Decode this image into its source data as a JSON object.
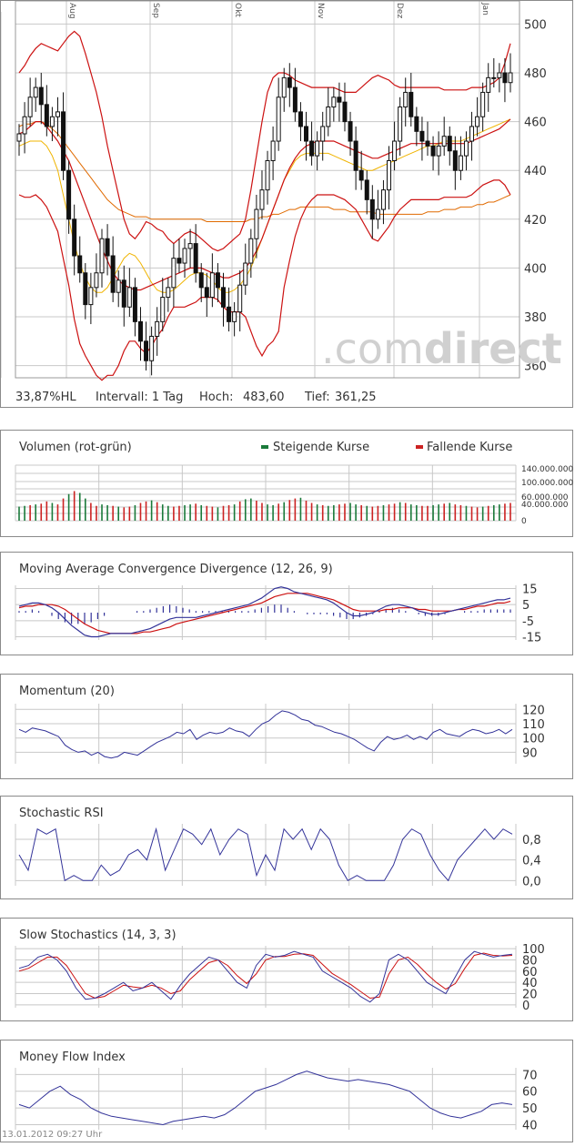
{
  "colors": {
    "grid": "#c8c8c8",
    "border": "#8a8a8a",
    "band": "#cc1111",
    "ma_fast": "#f0b400",
    "ma_slow": "#e06a00",
    "candle": "#111111",
    "rise": "#1a7a3a",
    "fall": "#cc2222",
    "ind": "#333399",
    "sig": "#cc1111"
  },
  "chart_data": [
    {
      "type": "candlestick",
      "months": [
        "Aug",
        "Sep",
        "Okt",
        "Nov",
        "Dez",
        "Jan"
      ],
      "y_ticks": [
        "500",
        "480",
        "460",
        "440",
        "420",
        "400",
        "380",
        "360"
      ],
      "ylim": [
        355,
        505
      ],
      "watermark": {
        "prefix": ".com",
        "suffix": "direct"
      },
      "stats": {
        "hl": "33,87%HL",
        "interval": "Intervall: 1 Tag",
        "high_label": "Hoch:",
        "high": "483,60",
        "low_label": "Tief:",
        "low": "361,25"
      },
      "close": [
        455,
        462,
        470,
        474,
        467,
        458,
        462,
        464,
        440,
        420,
        405,
        398,
        385,
        392,
        398,
        412,
        405,
        390,
        395,
        384,
        392,
        378,
        370,
        362,
        372,
        378,
        388,
        392,
        404,
        402,
        408,
        410,
        398,
        392,
        388,
        398,
        392,
        384,
        378,
        382,
        393,
        402,
        412,
        424,
        432,
        444,
        452,
        470,
        478,
        474,
        464,
        458,
        452,
        446,
        452,
        458,
        466,
        470,
        468,
        460,
        452,
        440,
        436,
        428,
        420,
        424,
        432,
        444,
        452,
        466,
        472,
        462,
        456,
        452,
        450,
        446,
        450,
        454,
        448,
        440,
        446,
        452,
        458,
        462,
        472,
        478,
        478,
        480,
        476,
        480
      ],
      "upper": [
        480,
        483,
        487,
        490,
        492,
        491,
        490,
        489,
        492,
        495,
        497,
        495,
        488,
        480,
        472,
        462,
        450,
        440,
        430,
        420,
        414,
        412,
        415,
        419,
        418,
        416,
        415,
        412,
        410,
        412,
        414,
        415,
        414,
        412,
        410,
        408,
        407,
        408,
        410,
        412,
        414,
        420,
        432,
        446,
        460,
        472,
        478,
        480,
        480,
        479,
        477,
        476,
        475,
        474,
        474,
        474,
        474,
        474,
        473,
        472,
        472,
        472,
        474,
        476,
        478,
        479,
        478,
        477,
        475,
        474,
        474,
        474,
        474,
        474,
        474,
        474,
        474,
        473,
        473,
        473,
        473,
        473,
        474,
        474,
        474,
        475,
        476,
        478,
        484,
        492
      ],
      "middle": [
        455,
        456,
        458,
        460,
        460,
        458,
        455,
        452,
        448,
        444,
        438,
        432,
        426,
        420,
        414,
        408,
        403,
        398,
        395,
        393,
        392,
        391,
        391,
        392,
        393,
        394,
        395,
        396,
        397,
        398,
        399,
        400,
        400,
        400,
        399,
        398,
        397,
        396,
        396,
        397,
        398,
        400,
        403,
        407,
        412,
        418,
        424,
        430,
        436,
        441,
        445,
        448,
        450,
        451,
        452,
        452,
        452,
        452,
        451,
        450,
        449,
        448,
        447,
        446,
        445,
        445,
        446,
        447,
        448,
        449,
        450,
        451,
        451,
        451,
        451,
        451,
        451,
        451,
        451,
        451,
        451,
        451,
        452,
        453,
        454,
        455,
        456,
        457,
        459,
        461
      ],
      "lower": [
        430,
        429,
        429,
        430,
        428,
        425,
        420,
        415,
        404,
        393,
        379,
        369,
        364,
        360,
        356,
        354,
        356,
        356,
        360,
        366,
        370,
        370,
        367,
        365,
        368,
        372,
        375,
        380,
        384,
        384,
        384,
        385,
        386,
        388,
        388,
        388,
        387,
        384,
        382,
        382,
        382,
        380,
        374,
        368,
        364,
        368,
        370,
        374,
        392,
        403,
        413,
        420,
        425,
        428,
        430,
        430,
        430,
        430,
        429,
        428,
        426,
        424,
        420,
        416,
        412,
        411,
        414,
        417,
        421,
        424,
        426,
        428,
        428,
        428,
        428,
        428,
        428,
        429,
        429,
        429,
        429,
        429,
        430,
        432,
        434,
        435,
        436,
        436,
        434,
        430
      ],
      "ma_fast": [
        450,
        451,
        452,
        452,
        452,
        450,
        446,
        440,
        430,
        420,
        410,
        402,
        396,
        392,
        390,
        390,
        392,
        396,
        400,
        404,
        406,
        405,
        402,
        398,
        394,
        391,
        390,
        390,
        391,
        393,
        395,
        397,
        398,
        398,
        397,
        395,
        392,
        390,
        390,
        391,
        393,
        396,
        400,
        406,
        412,
        418,
        424,
        430,
        436,
        440,
        444,
        446,
        447,
        447,
        447,
        447,
        447,
        446,
        445,
        444,
        443,
        442,
        441,
        440,
        440,
        441,
        442,
        443,
        444,
        445,
        446,
        447,
        448,
        449,
        450,
        450,
        451,
        452,
        452,
        452,
        452,
        453,
        454,
        455,
        456,
        457,
        458,
        459,
        460,
        461
      ],
      "ma_slow": [
        458,
        459,
        459,
        460,
        460,
        459,
        457,
        455,
        452,
        449,
        446,
        443,
        440,
        437,
        434,
        431,
        428,
        426,
        424,
        423,
        422,
        421,
        421,
        421,
        420,
        420,
        420,
        420,
        420,
        420,
        420,
        420,
        420,
        420,
        419,
        419,
        419,
        419,
        419,
        419,
        419,
        419,
        420,
        420,
        421,
        421,
        422,
        422,
        423,
        424,
        424,
        425,
        425,
        425,
        425,
        425,
        425,
        424,
        424,
        424,
        423,
        423,
        423,
        423,
        423,
        422,
        422,
        422,
        422,
        422,
        422,
        422,
        422,
        422,
        423,
        423,
        423,
        424,
        424,
        424,
        425,
        425,
        425,
        426,
        426,
        427,
        427,
        428,
        429,
        430
      ]
    },
    {
      "type": "bar",
      "title": "Volumen (rot-grün)",
      "legend": [
        {
          "name": "Steigende Kurse"
        },
        {
          "name": "Fallende Kurse"
        }
      ],
      "y_ticks": [
        "140.000.000",
        "100.000.000",
        "60.000.000",
        "40.000.000",
        "0"
      ],
      "ylim": [
        0,
        150000000
      ],
      "values": [
        38,
        40,
        42,
        44,
        46,
        52,
        48,
        44,
        60,
        72,
        80,
        75,
        60,
        48,
        40,
        44,
        42,
        40,
        38,
        36,
        38,
        42,
        48,
        52,
        55,
        50,
        44,
        40,
        38,
        40,
        42,
        44,
        46,
        42,
        40,
        38,
        36,
        40,
        42,
        44,
        52,
        58,
        60,
        54,
        48,
        44,
        42,
        46,
        50,
        56,
        60,
        62,
        54,
        48,
        44,
        42,
        40,
        42,
        44,
        46,
        48,
        44,
        42,
        40,
        38,
        40,
        42,
        44,
        46,
        50,
        48,
        44,
        42,
        40,
        40,
        42,
        44,
        46,
        48,
        44,
        42,
        40,
        38,
        36,
        38,
        40,
        42,
        44,
        46,
        48
      ]
    },
    {
      "type": "line",
      "title": "Moving Average Convergence Divergence (12, 26, 9)",
      "y_ticks": [
        "15",
        "5",
        "-5",
        "-15"
      ],
      "ylim": [
        -17,
        17
      ],
      "series": [
        {
          "values": [
            4,
            5,
            6,
            6,
            5,
            3,
            0,
            -4,
            -8,
            -11,
            -14,
            -15,
            -15,
            -14,
            -13,
            -13,
            -13,
            -13,
            -12,
            -11,
            -10,
            -8,
            -6,
            -4,
            -3,
            -3,
            -3,
            -3,
            -2,
            -1,
            0,
            1,
            2,
            3,
            4,
            5,
            7,
            9,
            12,
            15,
            16,
            15,
            13,
            12,
            11,
            10,
            9,
            8,
            6,
            3,
            0,
            -2,
            -2,
            -1,
            0,
            2,
            4,
            5,
            5,
            4,
            3,
            1,
            0,
            -1,
            -1,
            0,
            1,
            2,
            3,
            4,
            5,
            6,
            7,
            8,
            8,
            9
          ]
        },
        {
          "values": [
            3,
            4,
            4,
            5,
            5,
            5,
            4,
            2,
            -1,
            -4,
            -7,
            -9,
            -11,
            -12,
            -13,
            -13,
            -13,
            -13,
            -13,
            -12,
            -12,
            -11,
            -10,
            -9,
            -7,
            -6,
            -5,
            -4,
            -3,
            -2,
            -1,
            0,
            1,
            2,
            3,
            4,
            5,
            6,
            8,
            10,
            11,
            12,
            12,
            12,
            12,
            11,
            10,
            9,
            8,
            6,
            4,
            2,
            1,
            1,
            1,
            1,
            2,
            2,
            3,
            3,
            3,
            2,
            2,
            1,
            1,
            1,
            1,
            2,
            2,
            3,
            4,
            4,
            5,
            6,
            6,
            7
          ]
        },
        {
          "values": [
            1,
            1,
            2,
            1,
            0,
            -2,
            -4,
            -6,
            -7,
            -7,
            -7,
            -6,
            -4,
            -2,
            0,
            0,
            0,
            0,
            1,
            1,
            2,
            3,
            4,
            5,
            4,
            3,
            2,
            1,
            1,
            1,
            1,
            1,
            1,
            1,
            1,
            1,
            2,
            3,
            4,
            5,
            5,
            3,
            1,
            0,
            -1,
            -1,
            -1,
            -1,
            -2,
            -3,
            -4,
            -4,
            -3,
            -2,
            -1,
            1,
            2,
            3,
            2,
            1,
            0,
            -1,
            -2,
            -2,
            -2,
            -1,
            0,
            0,
            1,
            1,
            1,
            2,
            2,
            2,
            2,
            2
          ]
        }
      ]
    },
    {
      "type": "line",
      "title": "Momentum (20)",
      "y_ticks": [
        "120",
        "110",
        "100",
        "90"
      ],
      "ylim": [
        82,
        124
      ],
      "series": [
        {
          "values": [
            106,
            104,
            107,
            106,
            105,
            103,
            101,
            95,
            92,
            90,
            91,
            88,
            90,
            87,
            86,
            87,
            90,
            89,
            88,
            91,
            94,
            97,
            99,
            101,
            104,
            103,
            106,
            99,
            102,
            104,
            103,
            104,
            107,
            105,
            104,
            101,
            106,
            110,
            112,
            116,
            119,
            118,
            116,
            113,
            112,
            109,
            108,
            106,
            104,
            103,
            101,
            99,
            96,
            93,
            91,
            97,
            101,
            99,
            100,
            102,
            99,
            101,
            99,
            104,
            106,
            103,
            102,
            101,
            104,
            106,
            105,
            103,
            104,
            106,
            103,
            106
          ]
        }
      ]
    },
    {
      "type": "line",
      "title": "Stochastic RSI",
      "y_ticks": [
        "0,8",
        "0,4",
        "0,0"
      ],
      "ylim": [
        -0.1,
        1.1
      ],
      "series": [
        {
          "values": [
            0.5,
            0.2,
            1.0,
            0.9,
            1.0,
            0.0,
            0.1,
            0.0,
            0.0,
            0.3,
            0.1,
            0.2,
            0.5,
            0.6,
            0.4,
            1.0,
            0.2,
            0.6,
            1.0,
            0.9,
            0.7,
            1.0,
            0.5,
            0.8,
            1.0,
            0.9,
            0.1,
            0.5,
            0.2,
            1.0,
            0.8,
            1.0,
            0.6,
            1.0,
            0.8,
            0.3,
            0.0,
            0.1,
            0.0,
            0.0,
            0.0,
            0.3,
            0.8,
            1.0,
            0.9,
            0.5,
            0.2,
            0.0,
            0.4,
            0.6,
            0.8,
            1.0,
            0.8,
            1.0,
            0.9
          ]
        }
      ]
    },
    {
      "type": "line",
      "title": "Slow Stochastics (14, 3, 3)",
      "y_ticks": [
        "100",
        "80",
        "60",
        "40",
        "20",
        "0"
      ],
      "ylim": [
        -5,
        105
      ],
      "series": [
        {
          "values": [
            65,
            70,
            85,
            90,
            80,
            60,
            30,
            10,
            12,
            20,
            30,
            40,
            25,
            30,
            40,
            25,
            10,
            35,
            55,
            70,
            85,
            80,
            60,
            40,
            30,
            70,
            90,
            85,
            88,
            95,
            90,
            85,
            60,
            50,
            40,
            30,
            15,
            5,
            20,
            80,
            90,
            80,
            60,
            40,
            30,
            20,
            50,
            80,
            95,
            90,
            85,
            88,
            90
          ]
        },
        {
          "values": [
            60,
            65,
            75,
            85,
            85,
            70,
            45,
            20,
            12,
            15,
            25,
            35,
            32,
            30,
            35,
            30,
            20,
            25,
            45,
            60,
            75,
            80,
            70,
            52,
            38,
            55,
            80,
            86,
            86,
            90,
            91,
            88,
            72,
            56,
            46,
            36,
            24,
            12,
            14,
            55,
            80,
            85,
            72,
            55,
            40,
            28,
            38,
            65,
            88,
            92,
            88,
            87,
            88
          ]
        }
      ]
    },
    {
      "type": "line",
      "title": "Money Flow Index",
      "y_ticks": [
        "70",
        "60",
        "50",
        "40"
      ],
      "ylim": [
        37,
        74
      ],
      "series": [
        {
          "values": [
            52,
            50,
            55,
            60,
            63,
            58,
            55,
            50,
            47,
            45,
            44,
            43,
            42,
            41,
            40,
            42,
            43,
            44,
            45,
            44,
            46,
            50,
            55,
            60,
            62,
            64,
            67,
            70,
            72,
            70,
            68,
            67,
            66,
            67,
            66,
            65,
            64,
            62,
            60,
            55,
            50,
            47,
            45,
            44,
            46,
            48,
            52,
            53,
            52
          ]
        }
      ]
    }
  ],
  "footer": {
    "timestamp": "13.01.2012 09:27 Uhr"
  }
}
